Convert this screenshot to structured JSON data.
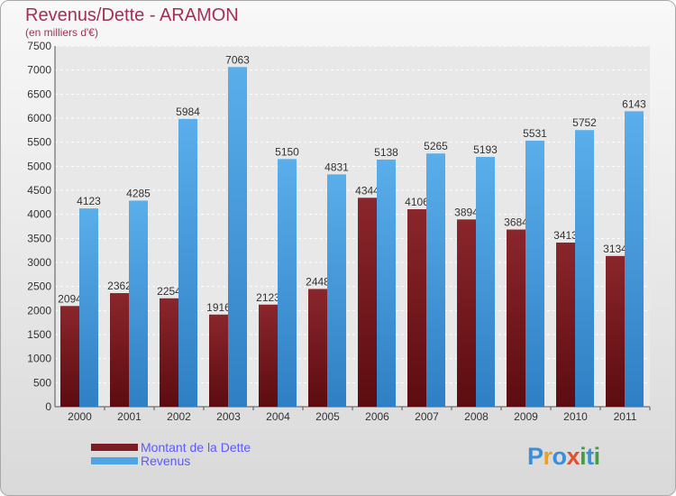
{
  "chart_data": {
    "type": "bar",
    "title": "Revenus/Dette - ARAMON",
    "subtitle": "(en milliers d'€)",
    "categories": [
      "2000",
      "2001",
      "2002",
      "2003",
      "2004",
      "2005",
      "2006",
      "2007",
      "2008",
      "2009",
      "2010",
      "2011"
    ],
    "series": [
      {
        "name": "Montant de la Dette",
        "color": "#7a1e24",
        "values": [
          2094,
          2362,
          2254,
          1916,
          2123,
          2448,
          4344,
          4106,
          3894,
          3684,
          3413,
          3134
        ]
      },
      {
        "name": "Revenus",
        "color": "#4ea5e4",
        "values": [
          4123,
          4285,
          5984,
          7063,
          5150,
          4831,
          5138,
          5265,
          5193,
          5531,
          5752,
          6143
        ]
      }
    ],
    "ylim": [
      0,
      7500
    ],
    "yticks": [
      0,
      500,
      1000,
      1500,
      2000,
      2500,
      3000,
      3500,
      4000,
      4500,
      5000,
      5500,
      6000,
      6500,
      7000,
      7500
    ],
    "grid": true
  },
  "logo": {
    "letters": [
      "P",
      "r",
      "o",
      "x",
      "i",
      "t",
      "i"
    ],
    "colors": [
      "#3a8fd8",
      "#f0a020",
      "#3a8fd8",
      "#e05030",
      "#40a040",
      "#3a8fd8",
      "#40a040"
    ]
  }
}
